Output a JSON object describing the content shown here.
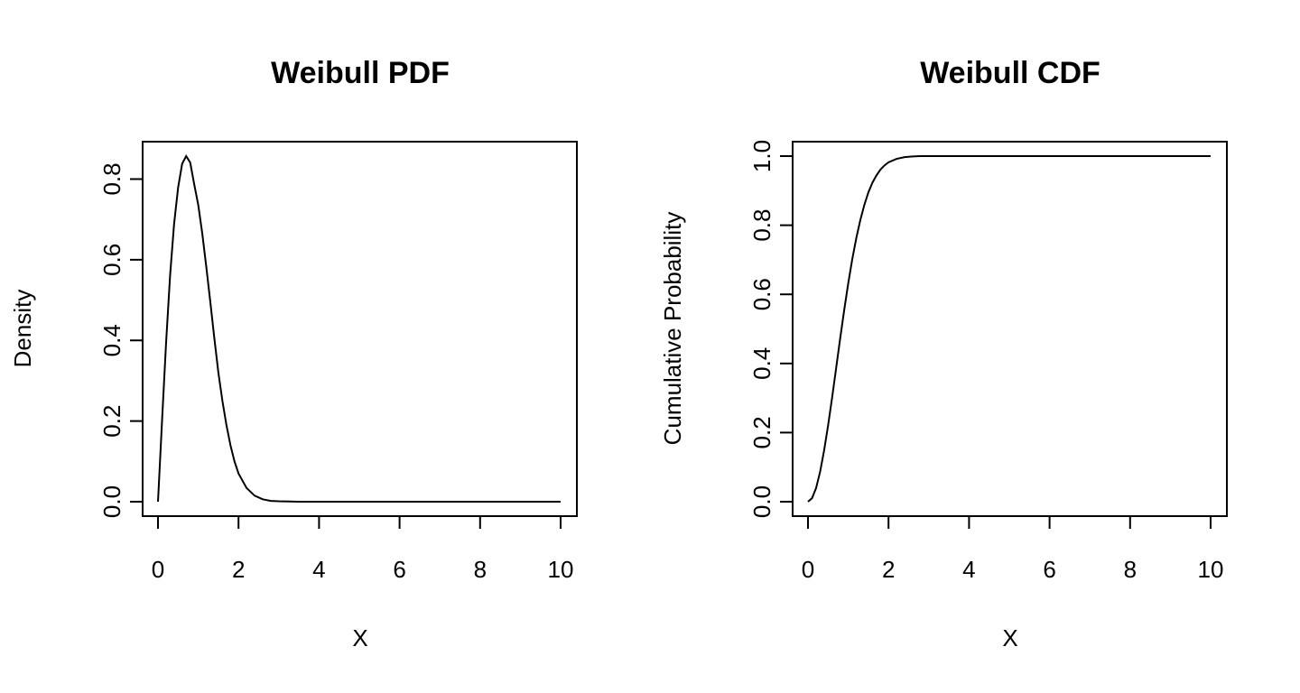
{
  "chart_data": [
    {
      "type": "line",
      "title": "Weibull PDF",
      "xlabel": "X",
      "ylabel": "Density",
      "xlim": [
        0,
        10
      ],
      "ylim": [
        0,
        0.86
      ],
      "xticks": [
        0,
        2,
        4,
        6,
        8,
        10
      ],
      "xtick_labels": [
        "0",
        "2",
        "4",
        "6",
        "8",
        "10"
      ],
      "yticks": [
        0,
        0.2,
        0.4,
        0.6,
        0.8
      ],
      "ytick_labels": [
        "0.0",
        "0.2",
        "0.4",
        "0.6",
        "0.8"
      ],
      "grid": false,
      "colors": {
        "line": "#000000"
      },
      "series": [
        {
          "x": [
            0,
            0.1,
            0.2,
            0.3,
            0.4,
            0.5,
            0.6,
            0.7,
            0.8,
            0.9,
            1.0,
            1.1,
            1.2,
            1.3,
            1.4,
            1.5,
            1.6,
            1.7,
            1.8,
            1.9,
            2.0,
            2.2,
            2.4,
            2.6,
            2.8,
            3.0,
            3.5,
            4.0,
            5.0,
            6.0,
            7.0,
            8.0,
            9.0,
            10.0
          ],
          "y": [
            0,
            0.199,
            0.392,
            0.56,
            0.689,
            0.779,
            0.838,
            0.857,
            0.841,
            0.787,
            0.736,
            0.665,
            0.582,
            0.495,
            0.405,
            0.32,
            0.25,
            0.19,
            0.14,
            0.1,
            0.07,
            0.034,
            0.015,
            0.006,
            0.002,
            0.001,
            0,
            0,
            0,
            0,
            0,
            0,
            0,
            0
          ]
        }
      ]
    },
    {
      "type": "line",
      "title": "Weibull CDF",
      "xlabel": "X",
      "ylabel": "Cumulative Probability",
      "xlim": [
        0,
        10
      ],
      "ylim": [
        0,
        1
      ],
      "xticks": [
        0,
        2,
        4,
        6,
        8,
        10
      ],
      "xtick_labels": [
        "0",
        "2",
        "4",
        "6",
        "8",
        "10"
      ],
      "yticks": [
        0,
        0.2,
        0.4,
        0.6,
        0.8,
        1.0
      ],
      "ytick_labels": [
        "0.0",
        "0.2",
        "0.4",
        "0.6",
        "0.8",
        "1.0"
      ],
      "grid": false,
      "colors": {
        "line": "#000000"
      },
      "series": [
        {
          "x": [
            0,
            0.1,
            0.2,
            0.3,
            0.4,
            0.5,
            0.6,
            0.7,
            0.8,
            0.9,
            1.0,
            1.1,
            1.2,
            1.3,
            1.4,
            1.5,
            1.6,
            1.7,
            1.8,
            1.9,
            2.0,
            2.2,
            2.4,
            2.6,
            2.8,
            3.0,
            3.5,
            4.0,
            5.0,
            6.0,
            7.0,
            8.0,
            9.0,
            10.0
          ],
          "y": [
            0,
            0.01,
            0.039,
            0.086,
            0.148,
            0.221,
            0.302,
            0.387,
            0.473,
            0.555,
            0.632,
            0.702,
            0.763,
            0.815,
            0.859,
            0.895,
            0.923,
            0.944,
            0.961,
            0.973,
            0.982,
            0.992,
            0.997,
            0.999,
            1.0,
            1.0,
            1.0,
            1.0,
            1.0,
            1.0,
            1.0,
            1.0,
            1.0,
            1.0
          ]
        }
      ]
    }
  ]
}
